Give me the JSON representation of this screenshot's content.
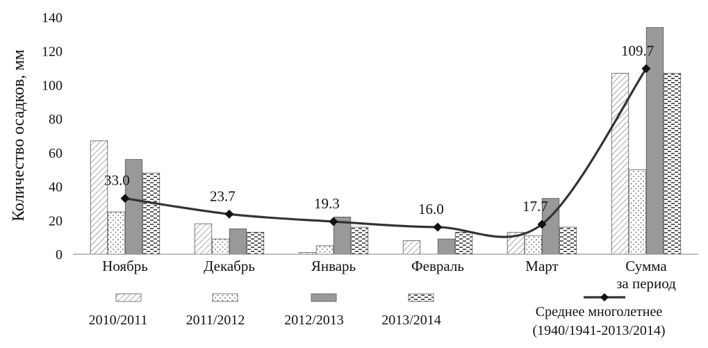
{
  "chart_data": {
    "type": "bar",
    "ylabel": "Количество осадков, мм",
    "ylim": [
      0,
      140
    ],
    "yticks": [
      "0",
      "20",
      "40",
      "60",
      "80",
      "100",
      "120",
      "140"
    ],
    "categories": [
      "Ноябрь",
      "Декабрь",
      "Январь",
      "Февраль",
      "Март",
      "Сумма за период"
    ],
    "category_lines": [
      [
        "Ноябрь"
      ],
      [
        "Декабрь"
      ],
      [
        "Январь"
      ],
      [
        "Февраль"
      ],
      [
        "Март"
      ],
      [
        "Сумма",
        "за период"
      ]
    ],
    "series": [
      {
        "name": "2010/2011",
        "pattern": "diagonal-hatch",
        "values": [
          67,
          18,
          1,
          8,
          13,
          107
        ]
      },
      {
        "name": "2011/2012",
        "pattern": "dots",
        "values": [
          25,
          9,
          5,
          0,
          11,
          50
        ]
      },
      {
        "name": "2012/2013",
        "pattern": "solid-gray",
        "color": "#999999",
        "values": [
          56,
          15,
          22,
          9,
          33,
          134
        ]
      },
      {
        "name": "2013/2014",
        "pattern": "dashes",
        "values": [
          48,
          13,
          16,
          13,
          16,
          107
        ]
      }
    ],
    "line_series": {
      "name_lines": [
        "Среднее многолетнее",
        "(1940/1941-2013/2014)"
      ],
      "type": "smooth-line-with-diamond-markers",
      "color": "#333333",
      "values": [
        33.0,
        23.7,
        19.3,
        16.0,
        17.7,
        109.7
      ],
      "labels": [
        "33.0",
        "23.7",
        "19.3",
        "16.0",
        "17.7",
        "109.7"
      ]
    },
    "grid": false,
    "legend_position": "bottom"
  }
}
